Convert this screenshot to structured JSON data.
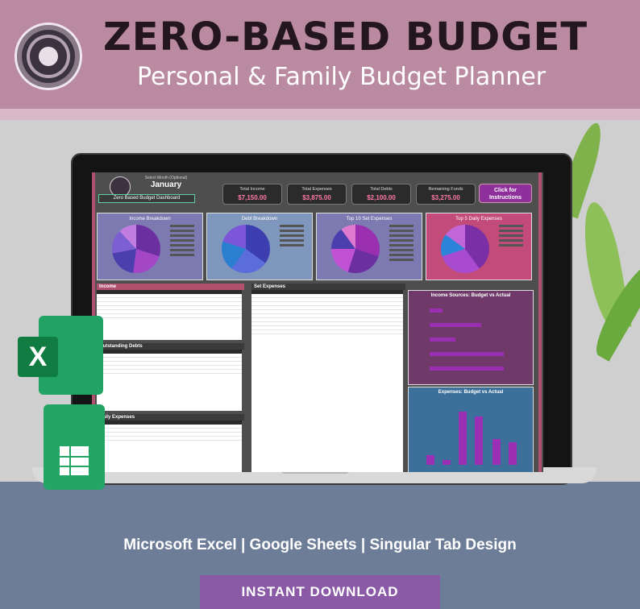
{
  "banner": {
    "title": "ZERO-BASED BUDGET",
    "subtitle": "Personal & Family Budget Planner"
  },
  "dashboard": {
    "month_option_label": "Select Month (Optional)",
    "month": "January",
    "dashboard_label": "Zero Based Budget Dashboard",
    "kpis": [
      {
        "label": "Total Income",
        "value": "$7,150.00"
      },
      {
        "label": "Total Expenses",
        "value": "$3,875.00"
      },
      {
        "label": "Total Debts",
        "value": "$2,100.00"
      },
      {
        "label": "Remaining Funds",
        "value": "$3,275.00"
      }
    ],
    "instructions_label": "Click for Instructions",
    "panels": [
      {
        "title": "Income Breakdown"
      },
      {
        "title": "Debt Breakdown"
      },
      {
        "title": "Top 10 Set Expenses"
      },
      {
        "title": "Top 5 Daily Expenses"
      }
    ],
    "sections": {
      "income": "Income",
      "set_expenses": "Set Expenses",
      "outstanding_debts": "Outstanding Debts",
      "daily_expenses": "Daily Expenses"
    },
    "chart_titles": {
      "income_sources": "Income Sources: Budget vs Actual",
      "expenses": "Expenses: Budget vs Actual"
    }
  },
  "footer": {
    "platforms": "Microsoft Excel | Google Sheets | Singular Tab Design",
    "download": "INSTANT DOWNLOAD"
  }
}
